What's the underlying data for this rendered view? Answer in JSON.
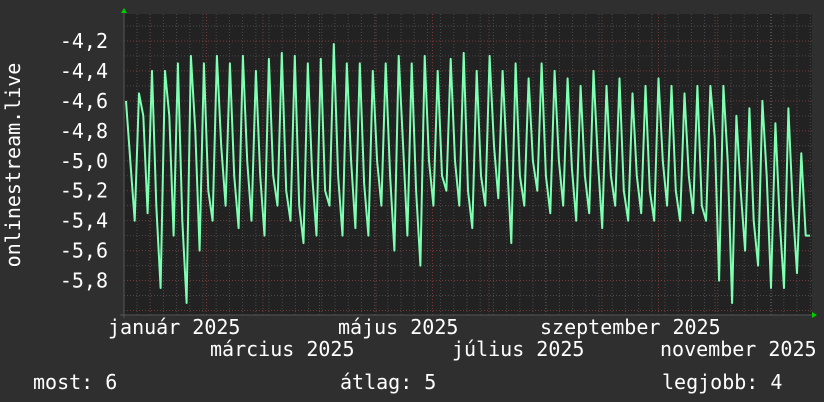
{
  "chart_data": {
    "type": "line",
    "ylabel": "onlinestream.live",
    "ylim": [
      -6.03,
      -4.02
    ],
    "y_ticks": [
      "-4,2",
      "-4,4",
      "-4,6",
      "-4,8",
      "-5,0",
      "-5,2",
      "-5,4",
      "-5,6",
      "-5,8"
    ],
    "y_tick_values": [
      -4.2,
      -4.4,
      -4.6,
      -4.8,
      -5.0,
      -5.2,
      -5.4,
      -5.6,
      -5.8
    ],
    "x_ticks": [
      "január 2025",
      "március 2025",
      "május 2025",
      "július 2025",
      "szeptember 2025",
      "november 2025"
    ],
    "grid": true,
    "line_color": "#7effb2",
    "series": [
      {
        "values": [
          -4.6,
          -5.0,
          -5.4,
          -4.55,
          -4.7,
          -5.35,
          -4.4,
          -5.3,
          -5.85,
          -4.4,
          -4.7,
          -5.5,
          -4.35,
          -5.4,
          -5.95,
          -4.3,
          -4.8,
          -5.6,
          -4.35,
          -5.2,
          -5.4,
          -4.3,
          -4.9,
          -5.3,
          -4.35,
          -5.1,
          -5.45,
          -4.3,
          -5.0,
          -5.4,
          -4.4,
          -5.1,
          -5.5,
          -4.32,
          -5.1,
          -5.3,
          -4.28,
          -5.2,
          -5.4,
          -4.3,
          -5.3,
          -5.55,
          -4.35,
          -5.1,
          -5.5,
          -4.32,
          -5.2,
          -5.3,
          -4.22,
          -5.1,
          -5.5,
          -4.35,
          -5.0,
          -5.45,
          -4.35,
          -5.15,
          -5.5,
          -4.4,
          -5.0,
          -5.3,
          -4.35,
          -5.1,
          -5.6,
          -4.3,
          -4.9,
          -5.5,
          -4.35,
          -5.2,
          -5.7,
          -4.3,
          -5.0,
          -5.3,
          -4.4,
          -5.1,
          -5.2,
          -4.32,
          -5.0,
          -5.3,
          -4.28,
          -5.2,
          -5.45,
          -4.4,
          -5.1,
          -5.3,
          -4.3,
          -4.9,
          -5.25,
          -4.4,
          -5.0,
          -5.55,
          -4.35,
          -5.1,
          -5.3,
          -4.45,
          -5.0,
          -5.2,
          -4.35,
          -5.1,
          -5.35,
          -4.4,
          -5.0,
          -5.3,
          -4.45,
          -5.05,
          -5.4,
          -4.5,
          -5.1,
          -5.35,
          -4.4,
          -5.0,
          -5.45,
          -4.5,
          -5.1,
          -5.3,
          -4.45,
          -5.2,
          -5.4,
          -4.55,
          -5.1,
          -5.35,
          -4.5,
          -5.2,
          -5.4,
          -4.45,
          -5.0,
          -5.3,
          -4.5,
          -5.2,
          -5.4,
          -4.55,
          -5.1,
          -5.35,
          -4.5,
          -5.3,
          -5.4,
          -4.5,
          -4.85,
          -5.8,
          -4.5,
          -5.0,
          -5.95,
          -4.7,
          -5.2,
          -5.6,
          -4.65,
          -5.4,
          -5.7,
          -4.6,
          -5.1,
          -5.85,
          -4.75,
          -5.4,
          -5.85,
          -4.65,
          -5.3,
          -5.75,
          -4.95,
          -5.5,
          -5.5
        ]
      }
    ]
  },
  "legend": {
    "current": "most: 6",
    "average": "átlag: 5",
    "best": "legjobb: 4"
  }
}
